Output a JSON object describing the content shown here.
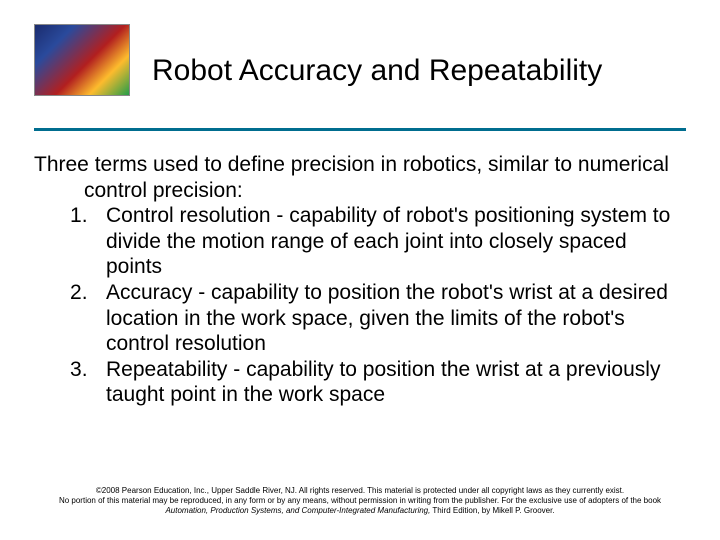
{
  "accent_color": "#006d8f",
  "text_color": "#000000",
  "background_color": "#ffffff",
  "title": "Robot Accuracy and Repeatability",
  "title_fontsize": 30,
  "body_fontsize": 21,
  "intro": "Three terms used to define precision in robotics, similar to numerical control precision:",
  "items": [
    "Control resolution - capability of robot's positioning system to divide the motion range of each joint into closely spaced points",
    "Accuracy - capability to position the robot's wrist at a desired location in the work space, given the limits of the robot's control resolution",
    "Repeatability - capability to position the wrist at a previously taught point in the work space"
  ],
  "footer": {
    "line1": "©2008 Pearson Education, Inc., Upper Saddle River, NJ. All rights reserved. This material is protected under all copyright laws as they currently exist.",
    "line2_pre": "No portion of this material may be reproduced, in any form or by any means, without permission in writing from the publisher. For the exclusive use of adopters of the book",
    "book_title": "Automation, Production Systems, and Computer-Integrated Manufacturing,",
    "line2_post": " Third Edition, by Mikell P. Groover.",
    "fontsize": 8
  },
  "thumbnail": {
    "width": 96,
    "height": 72,
    "description": "photo of electronic circuit board and resistors"
  }
}
